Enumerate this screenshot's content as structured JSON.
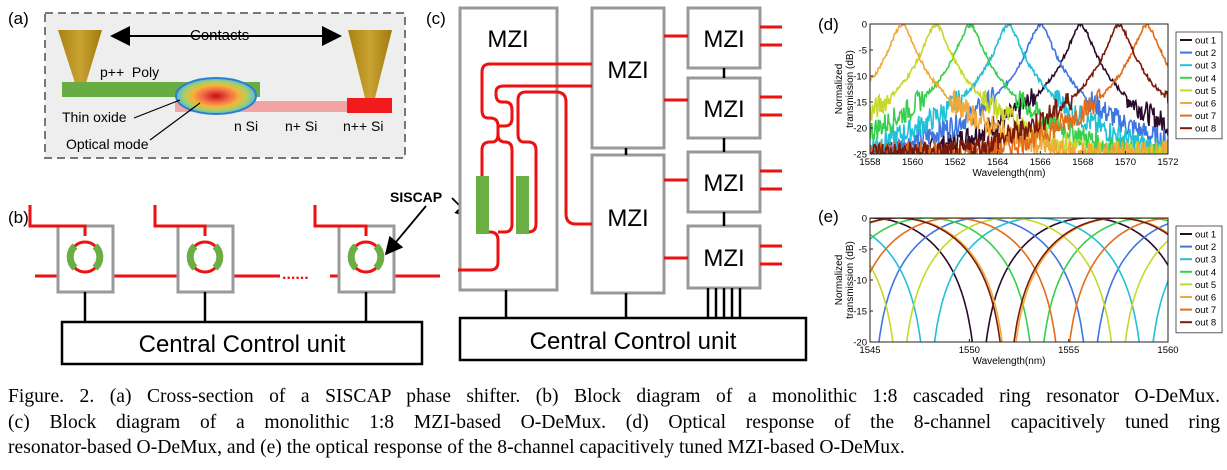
{
  "panels": {
    "a": {
      "label": "(a)",
      "contacts": "Contacts",
      "p_poly": "p++  Poly",
      "thin_oxide": "Thin oxide",
      "n_si": "n Si",
      "np_si": "n+ Si",
      "npp_si": "n++ Si",
      "optical_mode": "Optical mode"
    },
    "b": {
      "label": "(b)",
      "control": "Central Control unit",
      "dots": "......",
      "siscap": "SISCAP"
    },
    "c": {
      "label": "(c)",
      "mzi": "MZI",
      "control": "Central Control unit"
    }
  },
  "chart_data": [
    {
      "id": "d",
      "label": "(d)",
      "type": "line",
      "xlabel": "Wavelength(nm)",
      "ylabel": "Normalized transmission (dB)",
      "xlim": [
        1558,
        1572
      ],
      "ylim": [
        -25,
        0
      ],
      "xticks": [
        1558,
        1560,
        1562,
        1564,
        1566,
        1568,
        1570,
        1572
      ],
      "yticks": [
        0,
        -5,
        -10,
        -15,
        -20,
        -25
      ],
      "legend_position": "right",
      "series": [
        {
          "name": "out 1",
          "color": "#2b0a2b",
          "center": 1567.9,
          "width": 0.45
        },
        {
          "name": "out 2",
          "color": "#3f76e0",
          "center": 1566.0,
          "width": 0.45
        },
        {
          "name": "out 3",
          "color": "#22c0d8",
          "center": 1564.5,
          "width": 0.45
        },
        {
          "name": "out 4",
          "color": "#36d04c",
          "center": 1562.7,
          "width": 0.45
        },
        {
          "name": "out 5",
          "color": "#c8d82a",
          "center": 1561.1,
          "width": 0.45
        },
        {
          "name": "out 6",
          "color": "#f3a93a",
          "center": 1559.5,
          "width": 0.45
        },
        {
          "name": "out 7",
          "color": "#e36c1a",
          "center": 1571.0,
          "width": 0.45
        },
        {
          "name": "out 8",
          "color": "#7a1a0a",
          "center": 1569.7,
          "width": 0.45
        }
      ]
    },
    {
      "id": "e",
      "label": "(e)",
      "type": "line",
      "xlabel": "Wavelength(nm)",
      "ylabel": "Normalized transmission (dB)",
      "xlim": [
        1545,
        1560
      ],
      "ylim": [
        -20,
        0
      ],
      "xticks": [
        1545,
        1550,
        1555,
        1560
      ],
      "yticks": [
        0,
        -5,
        -10,
        -15,
        -20
      ],
      "legend_position": "right",
      "series": [
        {
          "name": "out 1",
          "color": "#2b0a2b",
          "center": 1556.0
        },
        {
          "name": "out 2",
          "color": "#3f76e0",
          "center": 1550.6
        },
        {
          "name": "out 3",
          "color": "#22c0d8",
          "center": 1553.4
        },
        {
          "name": "out 4",
          "color": "#36d04c",
          "center": 1547.9
        },
        {
          "name": "out 5",
          "color": "#c8d82a",
          "center": 1552.0
        },
        {
          "name": "out 6",
          "color": "#f3a93a",
          "center": 1546.5
        },
        {
          "name": "out 7",
          "color": "#e36c1a",
          "center": 1549.2
        },
        {
          "name": "out 8",
          "color": "#7a1a0a",
          "center": 1557.4
        }
      ]
    }
  ],
  "caption": {
    "line1": "Figure. 2. (a) Cross-section of a SISCAP phase shifter. (b) Block diagram of a monolithic 1:8 cascaded ring resonator O-DeMux.",
    "line2": "(c) Block diagram of a monolithic 1:8 MZI-based O-DeMux. (d) Optical response of the 8-channel capacitively tuned ring",
    "line3": "resonator-based O-DeMux, and (e) the optical response of the 8-channel capacitively tuned MZI-based O-DeMux."
  }
}
